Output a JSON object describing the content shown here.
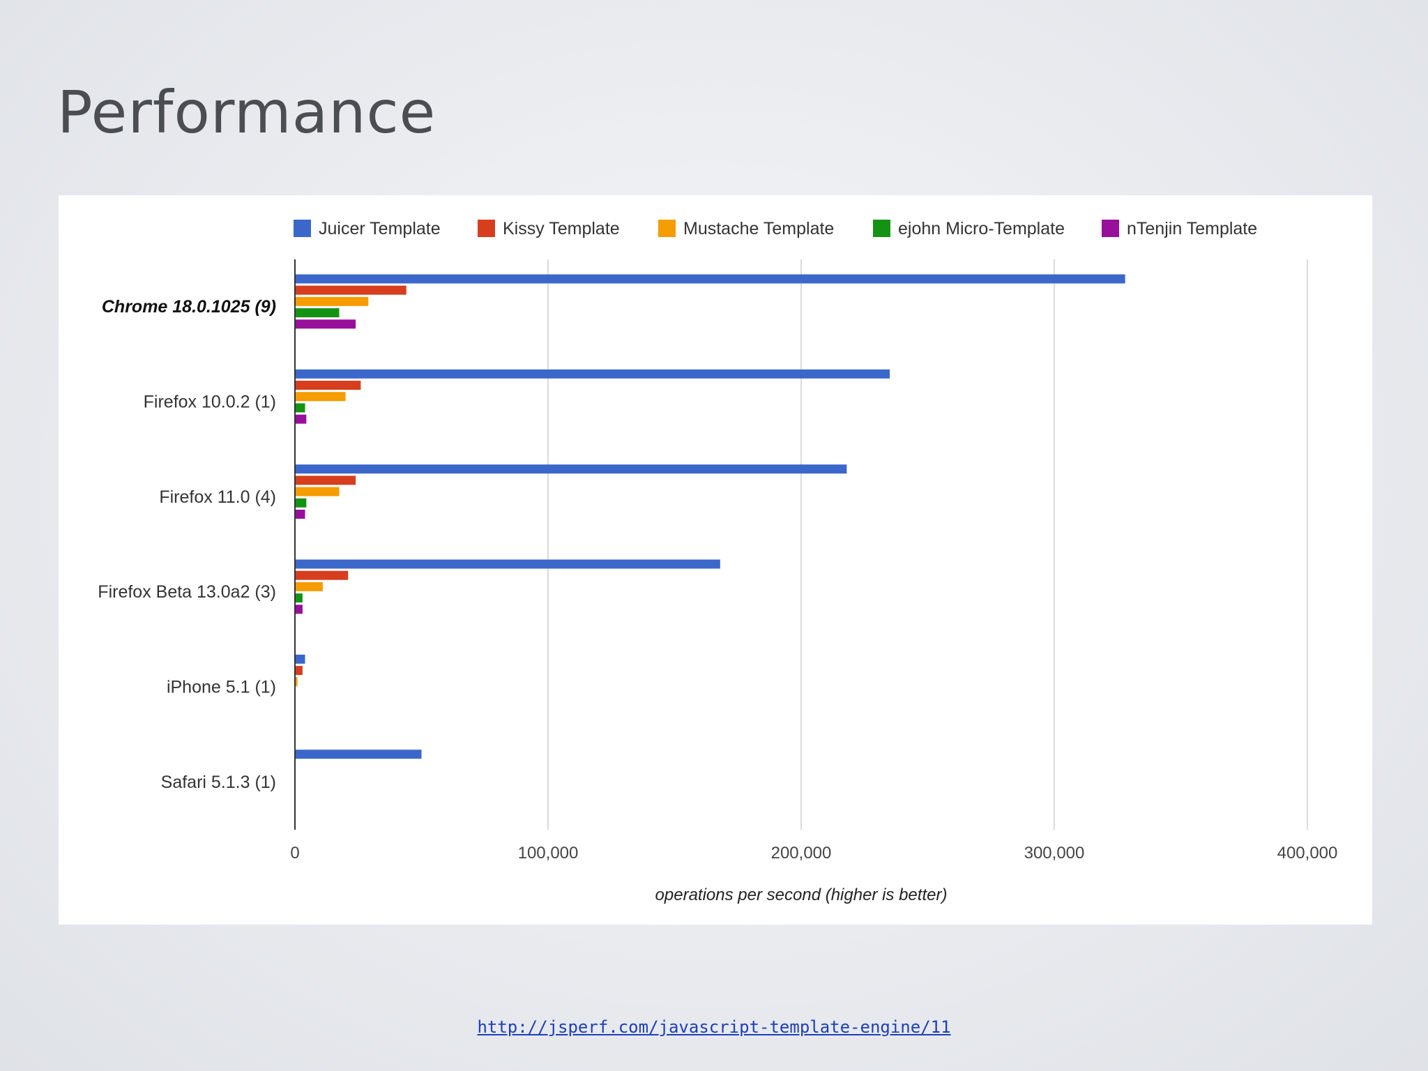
{
  "slide": {
    "title": "Performance",
    "source_link": "http://jsperf.com/javascript-template-engine/11"
  },
  "chart_data": {
    "type": "bar",
    "orientation": "horizontal",
    "title": "",
    "xlabel": "operations per second (higher is better)",
    "ylabel": "",
    "xlim": [
      0,
      400000
    ],
    "x_ticks": [
      0,
      100000,
      200000,
      300000,
      400000
    ],
    "x_tick_labels": [
      "0",
      "100,000",
      "200,000",
      "300,000",
      "400,000"
    ],
    "grid": true,
    "legend_position": "top",
    "categories": [
      "Chrome 18.0.1025 (9)",
      "Firefox 10.0.2 (1)",
      "Firefox 11.0 (4)",
      "Firefox Beta 13.0a2 (3)",
      "iPhone 5.1 (1)",
      "Safari 5.1.3 (1)"
    ],
    "highlighted_category": "Chrome 18.0.1025 (9)",
    "series": [
      {
        "name": "Juicer Template",
        "color": "#3a67c9",
        "values": [
          328000,
          235000,
          218000,
          168000,
          4000,
          50000
        ]
      },
      {
        "name": "Kissy Template",
        "color": "#d63e1e",
        "values": [
          44000,
          26000,
          24000,
          21000,
          3000,
          0
        ]
      },
      {
        "name": "Mustache Template",
        "color": "#f59c00",
        "values": [
          29000,
          20000,
          17500,
          11000,
          1000,
          0
        ]
      },
      {
        "name": "ejohn Micro-Template",
        "color": "#149214",
        "values": [
          17500,
          4000,
          4500,
          3000,
          0,
          0
        ]
      },
      {
        "name": "nTenjin Template",
        "color": "#970f9a",
        "values": [
          24000,
          4500,
          4000,
          3000,
          0,
          0
        ]
      }
    ]
  }
}
